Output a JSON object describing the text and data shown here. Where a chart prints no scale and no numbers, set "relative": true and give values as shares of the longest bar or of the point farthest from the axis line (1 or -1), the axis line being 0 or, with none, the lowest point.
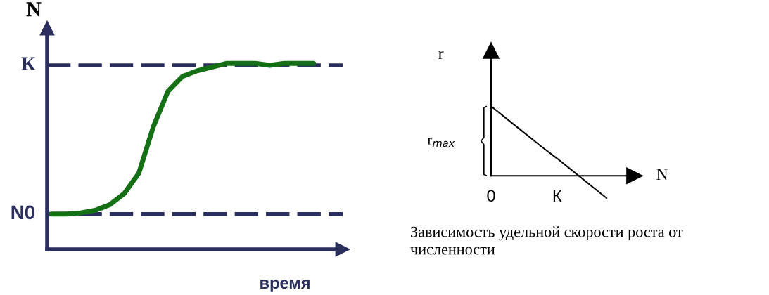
{
  "chart_data": [
    {
      "type": "line",
      "relative": true,
      "ylabel": "N",
      "xlabel": "время",
      "tick_labels": false,
      "grid": false,
      "legend": false,
      "marker": "none",
      "line_style": "solid",
      "categories": [
        null,
        null,
        null,
        null,
        null,
        null,
        null,
        null,
        null,
        null,
        null,
        null,
        null,
        null,
        null,
        null,
        null,
        null,
        null
      ],
      "series": [
        {
          "color": "#157015",
          "values": [
            0.19,
            0.19,
            0.196,
            0.21,
            0.24,
            0.3,
            0.41,
            0.66,
            0.85,
            0.93,
            0.96,
            0.98,
            1.0,
            1.0,
            1.0,
            0.99,
            1.0,
            1.0,
            1.0
          ]
        }
      ],
      "ref_lines": [
        {
          "axis": "y",
          "value": 0.99,
          "label": "К",
          "color": "#2b2f5e",
          "line_style": "dashed"
        },
        {
          "axis": "y",
          "value": 0.19,
          "label": "N0",
          "color": "#2b2f5e",
          "line_style": "dashed"
        }
      ]
    },
    {
      "type": "line",
      "relative": true,
      "ylabel": "r",
      "xlabel": "N",
      "tick_labels": "x",
      "grid": false,
      "legend": false,
      "marker": "none",
      "line_style": "solid",
      "categories": [
        "0",
        null,
        null,
        null,
        "К",
        null,
        null,
        null
      ],
      "series": [
        {
          "color": "#000000",
          "values": [
            1,
            0.81,
            0.62,
            0.43,
            0.25,
            0.06,
            -0.13,
            -0.32
          ]
        }
      ],
      "annotations": [
        "r$_{max}$",
        "Зависимость удельной скорости роста от численности"
      ]
    }
  ]
}
